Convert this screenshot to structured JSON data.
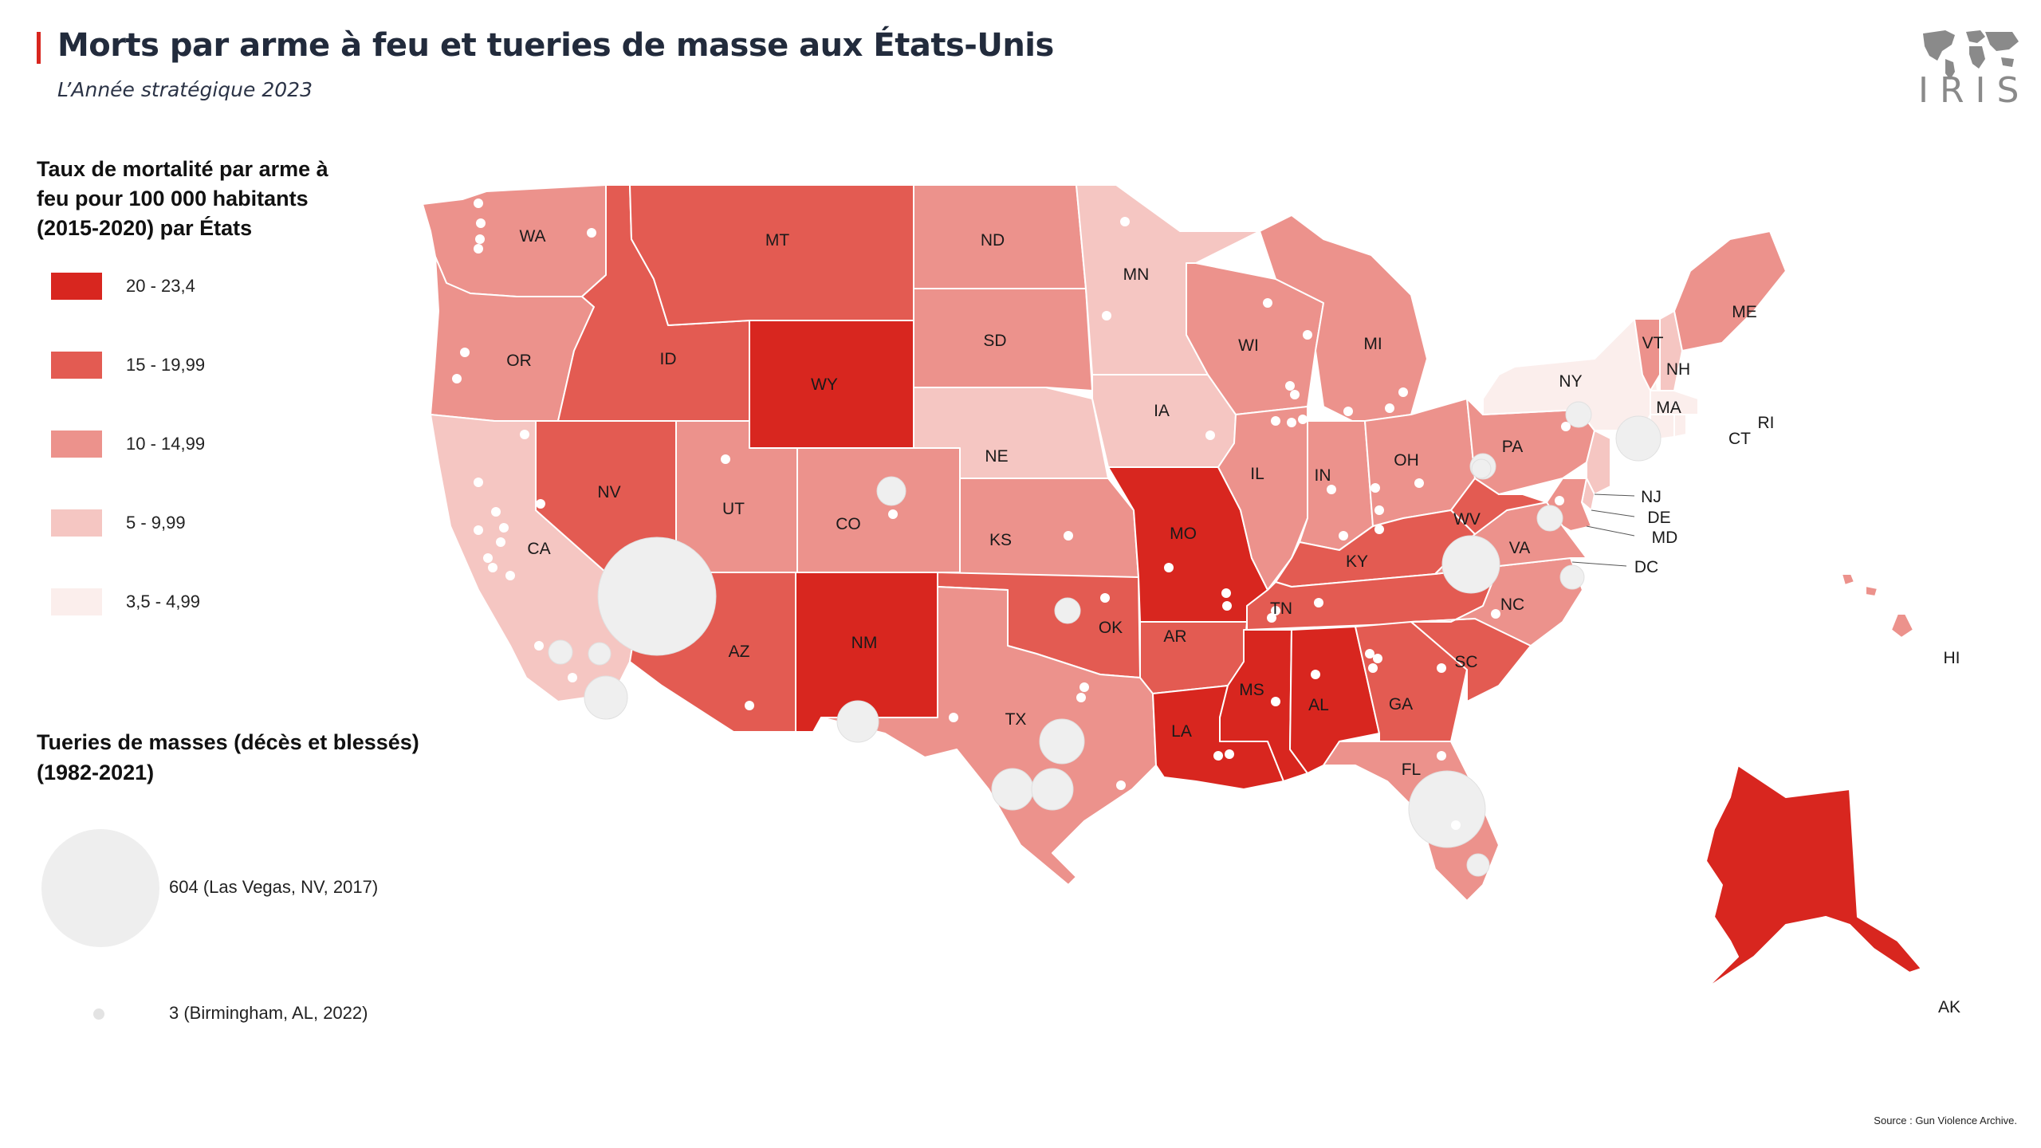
{
  "header": {
    "title": "Morts par arme à feu et tueries de masse aux États-Unis",
    "subtitle": "L’Année stratégique 2023",
    "logo_text": "IRIS"
  },
  "legend_rate": {
    "title": "Taux de mortalité par arme à feu pour 100 000 habitants (2015-2020) par États",
    "items": [
      {
        "label": "20 - 23,4",
        "color": "#d8261f"
      },
      {
        "label": "15 - 19,99",
        "color": "#e35b52"
      },
      {
        "label": "10 - 14,99",
        "color": "#ec928c"
      },
      {
        "label": "5 - 9,99",
        "color": "#f5c6c2"
      },
      {
        "label": "3,5 - 4,99",
        "color": "#fbeeec"
      }
    ]
  },
  "legend_bubbles": {
    "title": "Tueries de masses (décès et blessés) (1982-2021)",
    "max_label": "604 (Las Vegas, NV, 2017)",
    "min_label": "3 (Birmingham, AL, 2022)"
  },
  "source": "Source : Gun Violence Archive.",
  "states": {
    "WA": "WA",
    "OR": "OR",
    "CA": "CA",
    "NV": "NV",
    "ID": "ID",
    "MT": "MT",
    "WY": "WY",
    "UT": "UT",
    "AZ": "AZ",
    "CO": "CO",
    "NM": "NM",
    "ND": "ND",
    "SD": "SD",
    "NE": "NE",
    "KS": "KS",
    "OK": "OK",
    "TX": "TX",
    "MN": "MN",
    "IA": "IA",
    "MO": "MO",
    "AR": "AR",
    "LA": "LA",
    "WI": "WI",
    "IL": "IL",
    "MI": "MI",
    "IN": "IN",
    "OH": "OH",
    "KY": "KY",
    "TN": "TN",
    "MS": "MS",
    "AL": "AL",
    "GA": "GA",
    "FL": "FL",
    "SC": "SC",
    "NC": "NC",
    "VA": "VA",
    "WV": "WV",
    "PA": "PA",
    "NY": "NY",
    "VT": "VT",
    "NH": "NH",
    "ME": "ME",
    "MA": "MA",
    "RI": "RI",
    "CT": "CT",
    "NJ": "NJ",
    "DE": "DE",
    "MD": "MD",
    "DC": "DC",
    "HI": "HI",
    "AK": "AK"
  }
}
